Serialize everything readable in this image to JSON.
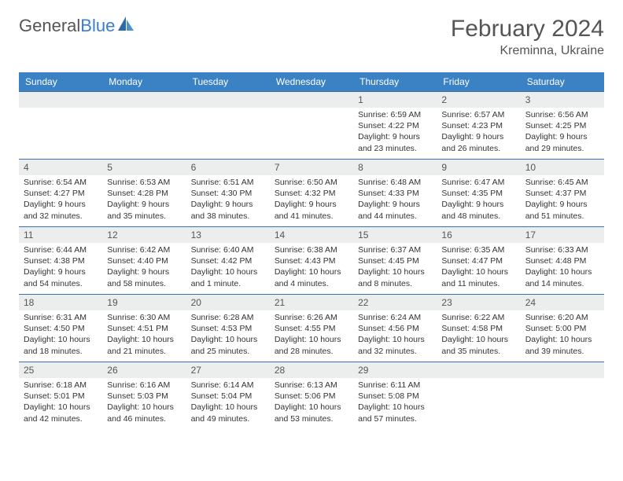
{
  "brand": {
    "name_gray": "General",
    "name_blue": "Blue"
  },
  "title": "February 2024",
  "location": "Kreminna, Ukraine",
  "colors": {
    "header_bg": "#3b82c4",
    "header_text": "#ffffff",
    "daynum_bg": "#eceded",
    "border": "#3b6fa8",
    "text": "#333333",
    "brand_gray": "#555555",
    "brand_blue": "#3b7fc4"
  },
  "weekdays": [
    "Sunday",
    "Monday",
    "Tuesday",
    "Wednesday",
    "Thursday",
    "Friday",
    "Saturday"
  ],
  "weeks": [
    [
      {
        "day": "",
        "sunrise": "",
        "sunset": "",
        "daylight": ""
      },
      {
        "day": "",
        "sunrise": "",
        "sunset": "",
        "daylight": ""
      },
      {
        "day": "",
        "sunrise": "",
        "sunset": "",
        "daylight": ""
      },
      {
        "day": "",
        "sunrise": "",
        "sunset": "",
        "daylight": ""
      },
      {
        "day": "1",
        "sunrise": "Sunrise: 6:59 AM",
        "sunset": "Sunset: 4:22 PM",
        "daylight": "Daylight: 9 hours and 23 minutes."
      },
      {
        "day": "2",
        "sunrise": "Sunrise: 6:57 AM",
        "sunset": "Sunset: 4:23 PM",
        "daylight": "Daylight: 9 hours and 26 minutes."
      },
      {
        "day": "3",
        "sunrise": "Sunrise: 6:56 AM",
        "sunset": "Sunset: 4:25 PM",
        "daylight": "Daylight: 9 hours and 29 minutes."
      }
    ],
    [
      {
        "day": "4",
        "sunrise": "Sunrise: 6:54 AM",
        "sunset": "Sunset: 4:27 PM",
        "daylight": "Daylight: 9 hours and 32 minutes."
      },
      {
        "day": "5",
        "sunrise": "Sunrise: 6:53 AM",
        "sunset": "Sunset: 4:28 PM",
        "daylight": "Daylight: 9 hours and 35 minutes."
      },
      {
        "day": "6",
        "sunrise": "Sunrise: 6:51 AM",
        "sunset": "Sunset: 4:30 PM",
        "daylight": "Daylight: 9 hours and 38 minutes."
      },
      {
        "day": "7",
        "sunrise": "Sunrise: 6:50 AM",
        "sunset": "Sunset: 4:32 PM",
        "daylight": "Daylight: 9 hours and 41 minutes."
      },
      {
        "day": "8",
        "sunrise": "Sunrise: 6:48 AM",
        "sunset": "Sunset: 4:33 PM",
        "daylight": "Daylight: 9 hours and 44 minutes."
      },
      {
        "day": "9",
        "sunrise": "Sunrise: 6:47 AM",
        "sunset": "Sunset: 4:35 PM",
        "daylight": "Daylight: 9 hours and 48 minutes."
      },
      {
        "day": "10",
        "sunrise": "Sunrise: 6:45 AM",
        "sunset": "Sunset: 4:37 PM",
        "daylight": "Daylight: 9 hours and 51 minutes."
      }
    ],
    [
      {
        "day": "11",
        "sunrise": "Sunrise: 6:44 AM",
        "sunset": "Sunset: 4:38 PM",
        "daylight": "Daylight: 9 hours and 54 minutes."
      },
      {
        "day": "12",
        "sunrise": "Sunrise: 6:42 AM",
        "sunset": "Sunset: 4:40 PM",
        "daylight": "Daylight: 9 hours and 58 minutes."
      },
      {
        "day": "13",
        "sunrise": "Sunrise: 6:40 AM",
        "sunset": "Sunset: 4:42 PM",
        "daylight": "Daylight: 10 hours and 1 minute."
      },
      {
        "day": "14",
        "sunrise": "Sunrise: 6:38 AM",
        "sunset": "Sunset: 4:43 PM",
        "daylight": "Daylight: 10 hours and 4 minutes."
      },
      {
        "day": "15",
        "sunrise": "Sunrise: 6:37 AM",
        "sunset": "Sunset: 4:45 PM",
        "daylight": "Daylight: 10 hours and 8 minutes."
      },
      {
        "day": "16",
        "sunrise": "Sunrise: 6:35 AM",
        "sunset": "Sunset: 4:47 PM",
        "daylight": "Daylight: 10 hours and 11 minutes."
      },
      {
        "day": "17",
        "sunrise": "Sunrise: 6:33 AM",
        "sunset": "Sunset: 4:48 PM",
        "daylight": "Daylight: 10 hours and 14 minutes."
      }
    ],
    [
      {
        "day": "18",
        "sunrise": "Sunrise: 6:31 AM",
        "sunset": "Sunset: 4:50 PM",
        "daylight": "Daylight: 10 hours and 18 minutes."
      },
      {
        "day": "19",
        "sunrise": "Sunrise: 6:30 AM",
        "sunset": "Sunset: 4:51 PM",
        "daylight": "Daylight: 10 hours and 21 minutes."
      },
      {
        "day": "20",
        "sunrise": "Sunrise: 6:28 AM",
        "sunset": "Sunset: 4:53 PM",
        "daylight": "Daylight: 10 hours and 25 minutes."
      },
      {
        "day": "21",
        "sunrise": "Sunrise: 6:26 AM",
        "sunset": "Sunset: 4:55 PM",
        "daylight": "Daylight: 10 hours and 28 minutes."
      },
      {
        "day": "22",
        "sunrise": "Sunrise: 6:24 AM",
        "sunset": "Sunset: 4:56 PM",
        "daylight": "Daylight: 10 hours and 32 minutes."
      },
      {
        "day": "23",
        "sunrise": "Sunrise: 6:22 AM",
        "sunset": "Sunset: 4:58 PM",
        "daylight": "Daylight: 10 hours and 35 minutes."
      },
      {
        "day": "24",
        "sunrise": "Sunrise: 6:20 AM",
        "sunset": "Sunset: 5:00 PM",
        "daylight": "Daylight: 10 hours and 39 minutes."
      }
    ],
    [
      {
        "day": "25",
        "sunrise": "Sunrise: 6:18 AM",
        "sunset": "Sunset: 5:01 PM",
        "daylight": "Daylight: 10 hours and 42 minutes."
      },
      {
        "day": "26",
        "sunrise": "Sunrise: 6:16 AM",
        "sunset": "Sunset: 5:03 PM",
        "daylight": "Daylight: 10 hours and 46 minutes."
      },
      {
        "day": "27",
        "sunrise": "Sunrise: 6:14 AM",
        "sunset": "Sunset: 5:04 PM",
        "daylight": "Daylight: 10 hours and 49 minutes."
      },
      {
        "day": "28",
        "sunrise": "Sunrise: 6:13 AM",
        "sunset": "Sunset: 5:06 PM",
        "daylight": "Daylight: 10 hours and 53 minutes."
      },
      {
        "day": "29",
        "sunrise": "Sunrise: 6:11 AM",
        "sunset": "Sunset: 5:08 PM",
        "daylight": "Daylight: 10 hours and 57 minutes."
      },
      {
        "day": "",
        "sunrise": "",
        "sunset": "",
        "daylight": ""
      },
      {
        "day": "",
        "sunrise": "",
        "sunset": "",
        "daylight": ""
      }
    ]
  ]
}
